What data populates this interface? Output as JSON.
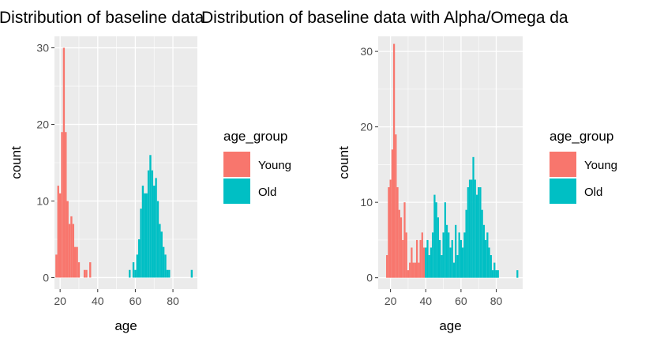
{
  "colors": {
    "young": "#F8766D",
    "old": "#00BFC4",
    "panel_background": "#EBEBEB",
    "grid": "#FFFFFF",
    "tick_text": "#4D4D4D"
  },
  "chart_data": [
    {
      "type": "bar",
      "title": "Distribution of baseline data",
      "xlabel": "age",
      "ylabel": "count",
      "xlim": [
        17,
        93
      ],
      "ylim": [
        -1.5,
        31.5
      ],
      "x_ticks": [
        20,
        40,
        60,
        80
      ],
      "y_ticks": [
        0,
        10,
        20,
        30
      ],
      "bin_width": 1,
      "grid": true,
      "legend": {
        "title": "age_group",
        "placement": "right",
        "entries": [
          {
            "label": "Young",
            "color": "#F8766D"
          },
          {
            "label": "Old",
            "color": "#00BFC4"
          }
        ]
      },
      "series": [
        {
          "name": "Young",
          "color": "#F8766D",
          "x": [
            18,
            19,
            20,
            21,
            22,
            23,
            24,
            25,
            26,
            27,
            28,
            29,
            30,
            33,
            34,
            36
          ],
          "values": [
            3,
            12,
            11,
            19,
            30,
            19,
            10,
            7,
            8,
            7,
            4,
            4,
            2,
            1,
            1,
            2
          ]
        },
        {
          "name": "Old",
          "color": "#00BFC4",
          "x": [
            57,
            59,
            60,
            61,
            62,
            63,
            64,
            65,
            66,
            67,
            68,
            69,
            70,
            71,
            72,
            73,
            74,
            75,
            76,
            77,
            78,
            90
          ],
          "values": [
            1,
            2,
            1,
            3,
            5,
            9,
            12,
            11,
            11,
            14,
            16,
            14,
            12,
            13,
            10,
            7,
            6,
            4,
            3,
            1,
            1,
            1
          ]
        }
      ]
    },
    {
      "type": "bar",
      "title": "Distribution of baseline data with Alpha/Omega da",
      "xlabel": "age",
      "ylabel": "count",
      "xlim": [
        13,
        95
      ],
      "ylim": [
        -1.5,
        32
      ],
      "x_ticks": [
        20,
        40,
        60,
        80
      ],
      "y_ticks": [
        0,
        10,
        20,
        30
      ],
      "bin_width": 1,
      "grid": true,
      "legend": {
        "title": "age_group",
        "placement": "right",
        "entries": [
          {
            "label": "Young",
            "color": "#F8766D"
          },
          {
            "label": "Old",
            "color": "#00BFC4"
          }
        ]
      },
      "series": [
        {
          "name": "Young",
          "color": "#F8766D",
          "x": [
            18,
            19,
            20,
            21,
            22,
            23,
            24,
            25,
            26,
            27,
            28,
            29,
            30,
            31,
            32,
            33,
            34,
            35,
            36,
            37,
            38,
            39
          ],
          "values": [
            3,
            12,
            13,
            17,
            31,
            19,
            12,
            9,
            8,
            5,
            10,
            6,
            1,
            2,
            4,
            2,
            2,
            5,
            2,
            5,
            6,
            4
          ]
        },
        {
          "name": "Old",
          "color": "#00BFC4",
          "x": [
            40,
            41,
            42,
            43,
            44,
            45,
            46,
            47,
            48,
            49,
            50,
            51,
            52,
            53,
            54,
            55,
            56,
            57,
            58,
            59,
            60,
            61,
            62,
            63,
            64,
            65,
            66,
            67,
            68,
            69,
            70,
            71,
            72,
            73,
            74,
            75,
            76,
            77,
            78,
            79,
            80,
            81,
            92
          ],
          "values": [
            4,
            5,
            3,
            4,
            6,
            11,
            10,
            8,
            5,
            3,
            6,
            10,
            7,
            6,
            4,
            5,
            2,
            7,
            3,
            6,
            5,
            4,
            6,
            9,
            12,
            13,
            13,
            16,
            13,
            11,
            12,
            12,
            9,
            7,
            5,
            6,
            4,
            3,
            1,
            2,
            1,
            1,
            1
          ]
        }
      ]
    }
  ]
}
